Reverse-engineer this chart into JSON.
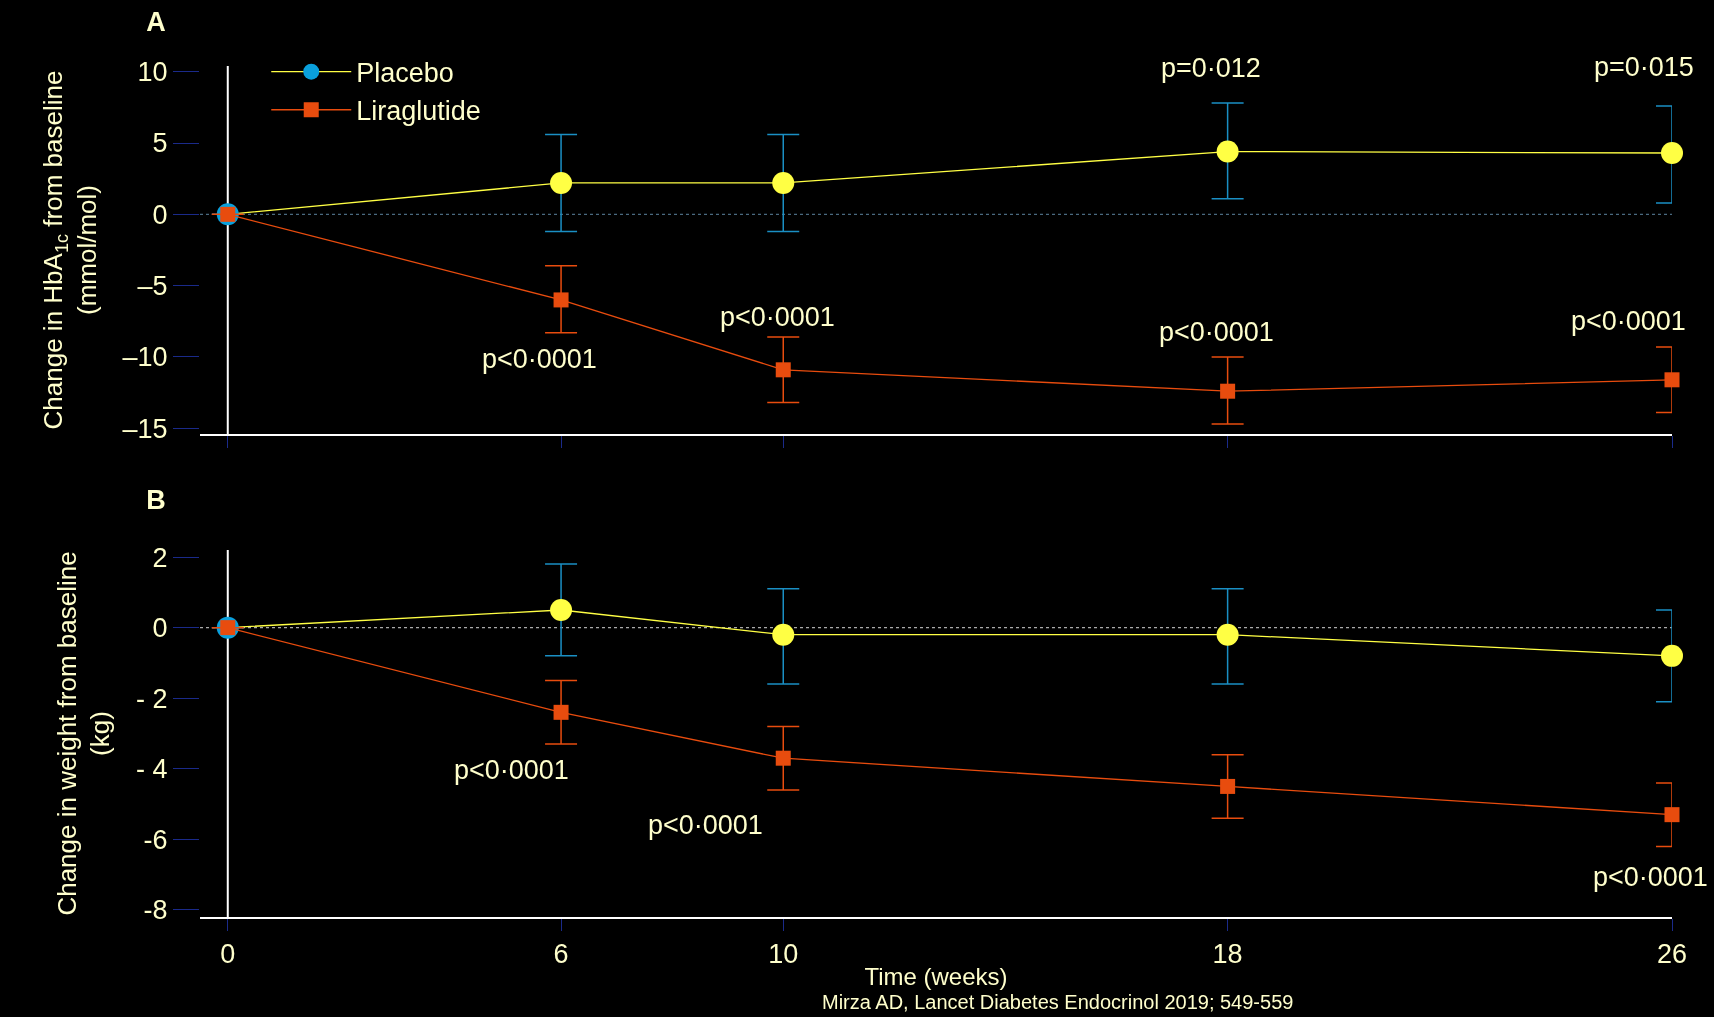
{
  "chart_data": [
    {
      "type": "line",
      "title": "A",
      "ylabel": "Change in HbA$_{1c}$ from baseline\n(mmol/mol)",
      "x": [
        0,
        6,
        10,
        18,
        26
      ],
      "xlim": [
        -0.5,
        26
      ],
      "xticks": [
        0,
        6,
        10,
        18,
        26
      ],
      "tick_labels": "y",
      "ylim": [
        -15.4,
        10.4
      ],
      "yticks": [
        10,
        5,
        0,
        {
          "value": -5,
          "label": "–5"
        },
        {
          "value": -10,
          "label": "–10"
        },
        {
          "value": -15,
          "label": "–15"
        }
      ],
      "grid": false,
      "legend": "top left",
      "series": [
        {
          "name": "Placebo",
          "color": "#ffff44",
          "colors": [
            "#0aa0dc",
            "#ffff44",
            "#ffff44",
            "#ffff44",
            "#ffff44"
          ],
          "marker": "circle",
          "values": [
            0,
            2.2,
            2.2,
            4.4,
            4.3
          ],
          "errors": [
            null,
            [
              -1.2,
              5.6
            ],
            [
              -1.2,
              5.6
            ],
            [
              1.1,
              7.8
            ],
            [
              0.8,
              7.6
            ]
          ]
        },
        {
          "name": "Liraglutide",
          "color": "#e84c0e",
          "marker": "square",
          "values": [
            0,
            -6.0,
            -10.9,
            -12.4,
            -11.6
          ],
          "errors": [
            null,
            [
              -8.3,
              -3.6
            ],
            [
              -13.2,
              -8.6
            ],
            [
              -14.7,
              -10.0
            ],
            [
              -13.9,
              -9.3
            ]
          ]
        }
      ],
      "ref_lines": [
        {
          "axis": "y",
          "value": 0,
          "color": "#4a6a80",
          "line_style": "dotted"
        }
      ],
      "annotations": [
        {
          "text": "p=0·012",
          "x": 18,
          "y": 4.4
        },
        {
          "text": "p=0·015",
          "x": 26,
          "y": 4.3
        },
        {
          "text": "p<0·0001",
          "x": 6,
          "y": -6.0
        },
        {
          "text": "p<0·0001",
          "x": 10,
          "y": -10.9
        },
        {
          "text": "p<0·0001",
          "x": 18,
          "y": -12.4
        },
        {
          "text": "p<0·0001",
          "x": 26,
          "y": -11.6
        }
      ]
    },
    {
      "type": "line",
      "title": "B",
      "ylabel": "Change in weight from baseline\n(kg)",
      "xlabel": "Time (weeks)",
      "x": [
        0,
        6,
        10,
        18,
        26
      ],
      "xlim": [
        -0.5,
        26
      ],
      "xticks": [
        0,
        6,
        10,
        18,
        26
      ],
      "ylim": [
        -8.2,
        2.2
      ],
      "yticks": [
        2,
        0,
        {
          "value": -2,
          "label": "- 2"
        },
        {
          "value": -4,
          "label": "- 4"
        },
        {
          "value": -6,
          "label": "-6"
        },
        {
          "value": -8,
          "label": "-8"
        }
      ],
      "grid": false,
      "legend": false,
      "series": [
        {
          "color": "#ffff44",
          "colors": [
            "#0aa0dc",
            "#ffff44",
            "#ffff44",
            "#ffff44",
            "#ffff44"
          ],
          "marker": "circle",
          "values": [
            0,
            0.5,
            -0.2,
            -0.2,
            -0.8
          ],
          "errors": [
            null,
            [
              -0.8,
              1.8
            ],
            [
              -1.6,
              1.1
            ],
            [
              -1.6,
              1.1
            ],
            [
              -2.1,
              0.5
            ]
          ]
        },
        {
          "color": "#e84c0e",
          "marker": "square",
          "values": [
            0,
            -2.4,
            -3.7,
            -4.5,
            -5.3
          ],
          "errors": [
            null,
            [
              -3.3,
              -1.5
            ],
            [
              -4.6,
              -2.8
            ],
            [
              -5.4,
              -3.6
            ],
            [
              -6.2,
              -4.4
            ]
          ]
        }
      ],
      "ref_lines": [
        {
          "axis": "y",
          "value": 0,
          "color": "#aaaaaa",
          "line_style": "dotted"
        }
      ],
      "annotations": [
        {
          "text": "p<0·0001",
          "x": 6,
          "y": -2.4
        },
        {
          "text": "p<0·0001",
          "x": 10,
          "y": -3.7
        },
        {
          "text": "p<0·0001",
          "x": 26,
          "y": -5.3
        },
        "Mirza AD, Lancet Diabetes Endocrinol 2019; 549-559"
      ]
    }
  ]
}
